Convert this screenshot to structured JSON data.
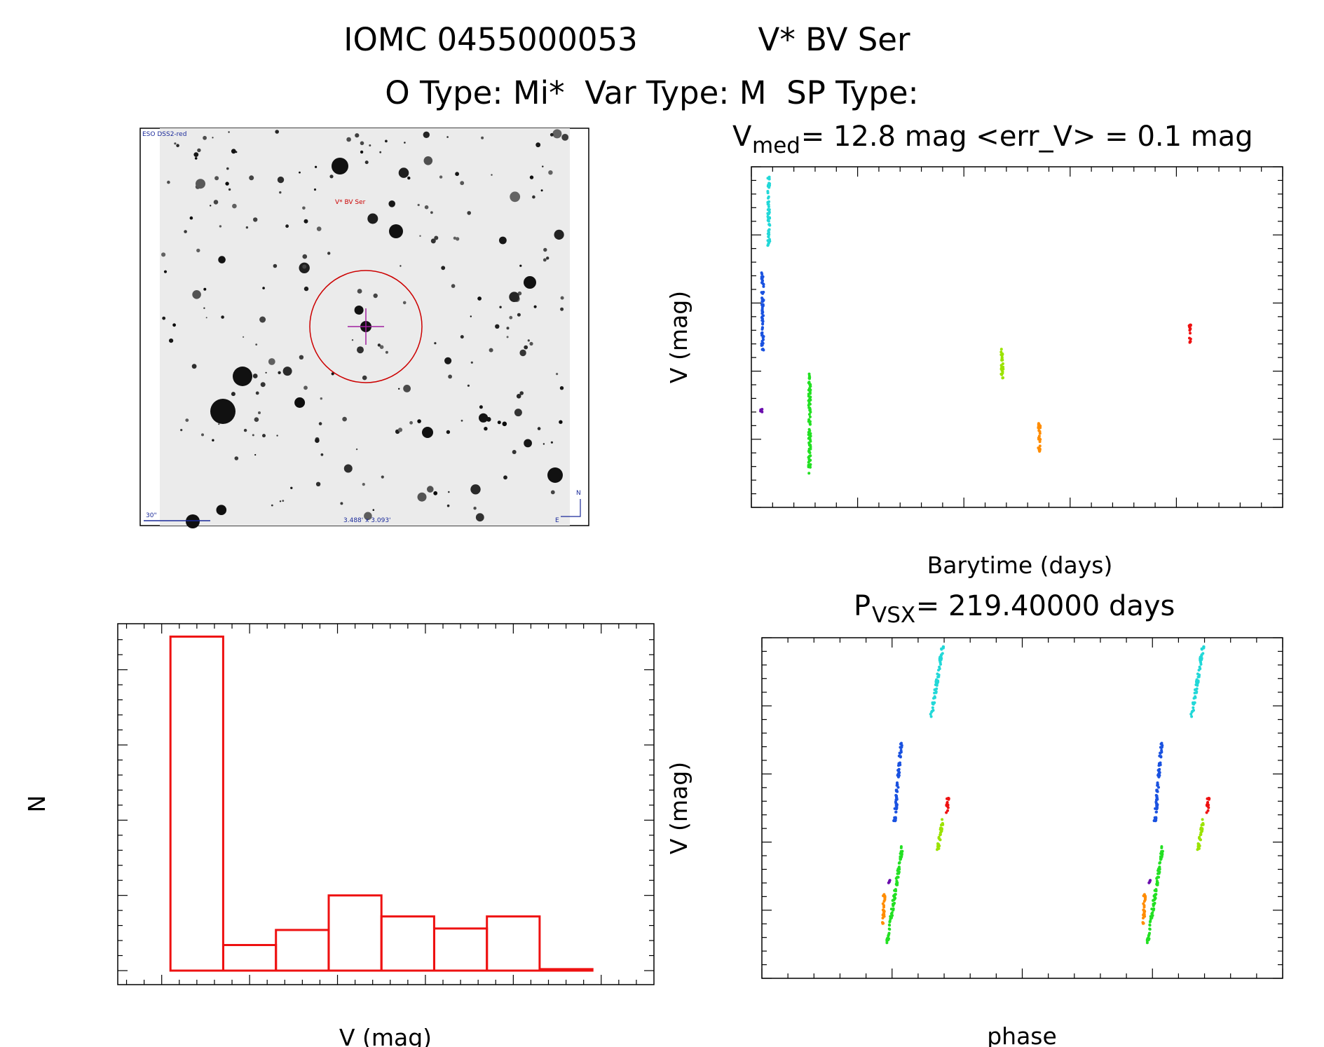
{
  "header": {
    "line1_left": "IOMC 0455000053",
    "line1_right": "V* BV Ser",
    "line2": "O Type: Mi*  Var Type: M  SP Type:"
  },
  "finder": {
    "survey_label": "ESO DSS2-red",
    "object_label": "V* BV Ser",
    "scale_label": "30\"",
    "size_label": "3.488' x 3.093'",
    "north_label": "N",
    "east_label": "E",
    "marker_color": "#cc0000"
  },
  "chart_data": [
    {
      "type": "scatter",
      "title_main": "V",
      "title_sub": "med",
      "title_rest": " = 12.8 mag <err_V> = 0.1 mag",
      "xlabel": "Barytime (days)",
      "ylabel": "V (mag)",
      "xlim": [
        1500,
        4000
      ],
      "ylim": [
        15.0,
        12.5
      ],
      "xticks": [
        "1500",
        "2000",
        "2500",
        "3000",
        "3500",
        "4000"
      ],
      "yticks": [
        "12.5",
        "13.0",
        "13.5",
        "14.0",
        "14.5",
        "15.0"
      ],
      "series": [
        {
          "color": "#6a0dad",
          "x": [
            1547
          ],
          "y_range": [
            14.28,
            14.3
          ]
        },
        {
          "color": "#1a52e0",
          "x": [
            1553
          ],
          "y_range": [
            13.27,
            13.85
          ]
        },
        {
          "color": "#22d8d8",
          "x": [
            1582
          ],
          "y_range": [
            12.56,
            13.08
          ]
        },
        {
          "color": "#22e022",
          "x": [
            1774
          ],
          "y_range": [
            14.02,
            14.75
          ]
        },
        {
          "color": "#9be300",
          "x": [
            2680
          ],
          "y_range": [
            13.83,
            14.06
          ]
        },
        {
          "color": "#ff8c00",
          "x": [
            2855
          ],
          "y_range": [
            14.38,
            14.62
          ]
        },
        {
          "color": "#ee1111",
          "x": [
            3565
          ],
          "y_range": [
            13.66,
            13.79
          ]
        }
      ]
    },
    {
      "type": "bar",
      "xlabel": "V (mag)",
      "ylabel": "N",
      "xlim": [
        12.25,
        15.3
      ],
      "ylim": [
        0,
        225
      ],
      "xticks": [
        "12.5",
        "13.0",
        "13.5",
        "14.0",
        "14.5",
        "15.0"
      ],
      "yticks": [
        "0",
        "50",
        "100",
        "150",
        "200"
      ],
      "bin_edges": [
        12.55,
        12.85,
        13.15,
        13.45,
        13.75,
        14.05,
        14.35,
        14.65,
        14.95
      ],
      "values": [
        222,
        17,
        27,
        50,
        36,
        28,
        36,
        1
      ],
      "color": "#ee1111"
    },
    {
      "type": "scatter",
      "title_main": "P",
      "title_sub": "VSX",
      "title_rest": " = 219.40000 days",
      "xlabel": "phase",
      "ylabel": "V (mag)",
      "xlim": [
        -0.5,
        1.5
      ],
      "ylim": [
        15.0,
        12.5
      ],
      "xticks": [
        "−0.5",
        "0.0",
        "0.5",
        "1.0",
        "1.5"
      ],
      "yticks": [
        "12.5",
        "13.0",
        "13.5",
        "14.0",
        "14.5",
        "15.0"
      ],
      "series": [
        {
          "color": "#6a0dad",
          "phase_range": [
            -0.012,
            -0.008
          ],
          "y_range": [
            14.28,
            14.3
          ]
        },
        {
          "color": "#1a52e0",
          "phase_range": [
            0.01,
            0.035
          ],
          "y_range": [
            13.27,
            13.85
          ]
        },
        {
          "color": "#22d8d8",
          "phase_range": [
            0.15,
            0.195
          ],
          "y_range": [
            12.56,
            13.08
          ]
        },
        {
          "color": "#22e022",
          "phase_range": [
            -0.02,
            0.04
          ],
          "y_range": [
            14.02,
            14.75
          ]
        },
        {
          "color": "#9be300",
          "phase_range": [
            0.175,
            0.195
          ],
          "y_range": [
            13.83,
            14.06
          ]
        },
        {
          "color": "#ff8c00",
          "phase_range": [
            -0.035,
            -0.03
          ],
          "y_range": [
            14.38,
            14.62
          ]
        },
        {
          "color": "#ee1111",
          "phase_range": [
            0.21,
            0.215
          ],
          "y_range": [
            13.66,
            13.79
          ]
        }
      ]
    }
  ]
}
